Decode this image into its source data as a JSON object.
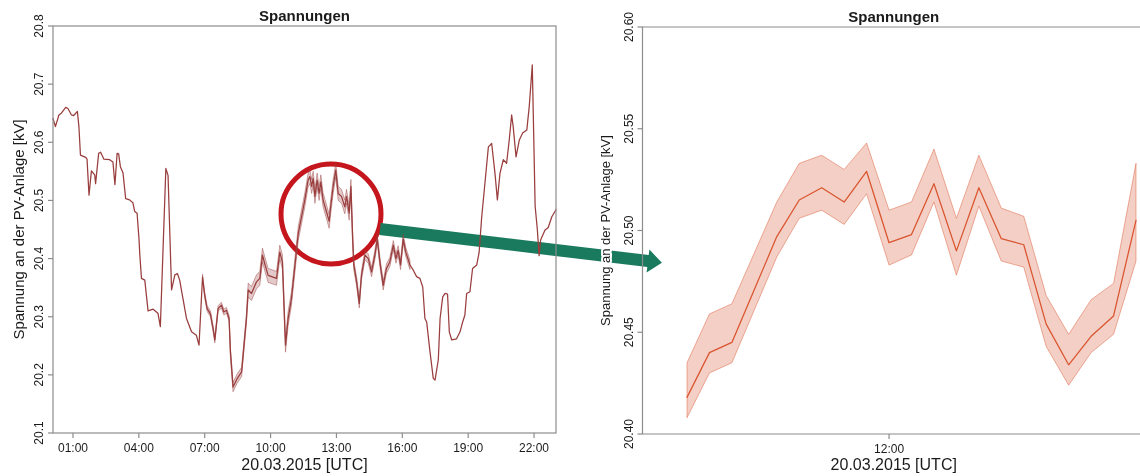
{
  "chart_data": [
    {
      "type": "line",
      "title": "Spannungen",
      "xlabel": "20.03.2015 [UTC]",
      "ylabel": "Spannung an der PV-Anlage [kV]",
      "xlim": [
        0.09,
        23
      ],
      "xticks": [
        {
          "value": 1,
          "label": "01:00"
        },
        {
          "value": 4,
          "label": "04:00"
        },
        {
          "value": 7,
          "label": "07:00"
        },
        {
          "value": 10,
          "label": "10:00"
        },
        {
          "value": 13,
          "label": "13:00"
        },
        {
          "value": 16,
          "label": "16:00"
        },
        {
          "value": 19,
          "label": "19:00"
        },
        {
          "value": 22,
          "label": "22:00"
        }
      ],
      "ylim": [
        20.1,
        20.8
      ],
      "yticks": [
        20.1,
        20.2,
        20.3,
        20.4,
        20.5,
        20.6,
        20.7,
        20.8
      ],
      "x": [
        0.09,
        0.2,
        0.36,
        0.47,
        0.67,
        0.77,
        0.93,
        1.03,
        1.2,
        1.27,
        1.34,
        1.58,
        1.64,
        1.73,
        1.84,
        1.99,
        2.03,
        2.17,
        2.26,
        2.41,
        2.67,
        2.82,
        2.91,
        3.01,
        3.08,
        3.16,
        3.28,
        3.4,
        3.58,
        3.73,
        3.81,
        3.92,
        4.01,
        4.04,
        4.12,
        4.27,
        4.42,
        4.65,
        4.87,
        4.98,
        5.23,
        5.33,
        5.49,
        5.64,
        5.76,
        5.86,
        6.01,
        6.17,
        6.4,
        6.62,
        6.74,
        6.9,
        7.0,
        7.11,
        7.26,
        7.38,
        7.46,
        7.61,
        7.76,
        7.87,
        7.99,
        8.11,
        8.17,
        8.29,
        8.47,
        8.68,
        8.9,
        8.98,
        9.13,
        9.36,
        9.51,
        9.63,
        9.75,
        9.89,
        10.27,
        10.42,
        10.54,
        10.65,
        10.68,
        10.8,
        10.95,
        11.26,
        11.56,
        11.71,
        11.79,
        11.87,
        11.94,
        12.02,
        12.12,
        12.21,
        12.29,
        12.39,
        12.52,
        12.67,
        12.73,
        12.85,
        12.97,
        13.08,
        13.23,
        13.38,
        13.46,
        13.58,
        13.66,
        13.73,
        13.79,
        13.92,
        14.04,
        14.14,
        14.3,
        14.45,
        14.6,
        14.75,
        14.86,
        14.98,
        15.13,
        15.28,
        15.43,
        15.59,
        15.71,
        15.81,
        15.92,
        16.04,
        16.16,
        16.35,
        16.5,
        16.65,
        16.8,
        16.93,
        17.03,
        17.11,
        17.26,
        17.41,
        17.49,
        17.64,
        17.72,
        17.84,
        17.95,
        18.06,
        18.14,
        18.25,
        18.47,
        18.63,
        18.75,
        18.85,
        18.93,
        19.08,
        19.2,
        19.39,
        19.5,
        19.61,
        19.92,
        20.07,
        20.22,
        20.33,
        20.45,
        20.6,
        20.75,
        20.87,
        20.98,
        21.05,
        21.18,
        21.33,
        21.48,
        21.67,
        21.78,
        21.92,
        22.05,
        22.15,
        22.23,
        22.3,
        22.5,
        22.64,
        22.81,
        23.0
      ],
      "series": [
        {
          "color": "#993d3d",
          "values": [
            20.641,
            20.627,
            20.647,
            20.65,
            20.66,
            20.658,
            20.647,
            20.646,
            20.653,
            20.627,
            20.578,
            20.574,
            20.571,
            20.509,
            20.551,
            20.544,
            20.529,
            20.581,
            20.583,
            20.571,
            20.57,
            20.566,
            20.527,
            20.581,
            20.58,
            20.558,
            20.547,
            20.503,
            20.501,
            20.496,
            20.481,
            20.478,
            20.432,
            20.409,
            20.366,
            20.363,
            20.31,
            20.313,
            20.306,
            20.283,
            20.555,
            20.543,
            20.346,
            20.372,
            20.374,
            20.363,
            20.331,
            20.297,
            20.274,
            20.268,
            20.251,
            20.368,
            20.337,
            20.314,
            20.305,
            20.28,
            20.26,
            20.314,
            20.32,
            20.308,
            20.311,
            20.297,
            20.24,
            20.179,
            20.193,
            20.205,
            20.297,
            20.346,
            20.34,
            20.36,
            20.366,
            20.406,
            20.389,
            20.371,
            20.366,
            20.411,
            20.394,
            20.28,
            20.251,
            20.297,
            20.331,
            20.443,
            20.501,
            20.535,
            20.541,
            20.524,
            20.538,
            20.507,
            20.535,
            20.512,
            20.532,
            20.501,
            20.484,
            20.464,
            20.487,
            20.524,
            20.552,
            20.512,
            20.507,
            20.489,
            20.507,
            20.478,
            20.524,
            20.443,
            20.389,
            20.36,
            20.323,
            20.371,
            20.406,
            20.4,
            20.377,
            20.406,
            20.434,
            20.394,
            20.354,
            20.383,
            20.394,
            20.423,
            20.4,
            20.414,
            20.389,
            20.434,
            20.411,
            20.389,
            20.38,
            20.369,
            20.366,
            20.351,
            20.297,
            20.291,
            20.24,
            20.194,
            20.191,
            20.226,
            20.297,
            20.334,
            20.34,
            20.339,
            20.274,
            20.26,
            20.262,
            20.274,
            20.291,
            20.303,
            20.34,
            20.343,
            20.383,
            20.389,
            20.411,
            20.469,
            20.592,
            20.598,
            20.547,
            20.501,
            20.547,
            20.57,
            20.564,
            20.604,
            20.647,
            20.627,
            20.575,
            20.604,
            20.616,
            20.621,
            20.661,
            20.733,
            20.49,
            20.45,
            20.405,
            20.432,
            20.449,
            20.453,
            20.472,
            20.484
          ],
          "lower": [
            null,
            null,
            null,
            null,
            null,
            null,
            null,
            null,
            null,
            null,
            null,
            null,
            null,
            null,
            null,
            null,
            null,
            null,
            null,
            null,
            null,
            null,
            null,
            null,
            null,
            null,
            null,
            null,
            null,
            null,
            null,
            null,
            null,
            null,
            null,
            null,
            null,
            null,
            null,
            null,
            null,
            null,
            null,
            null,
            null,
            null,
            null,
            null,
            null,
            null,
            null,
            20.363,
            20.332,
            20.309,
            20.3,
            20.275,
            20.255,
            20.309,
            20.315,
            20.303,
            20.306,
            20.292,
            20.232,
            20.171,
            20.185,
            20.197,
            20.289,
            20.334,
            20.328,
            20.348,
            20.354,
            20.394,
            20.377,
            20.359,
            20.354,
            20.399,
            20.382,
            20.268,
            20.239,
            20.285,
            20.319,
            20.431,
            20.489,
            20.523,
            20.529,
            20.512,
            20.526,
            20.495,
            20.523,
            20.5,
            20.52,
            20.489,
            20.472,
            20.452,
            20.475,
            20.512,
            20.54,
            20.5,
            20.495,
            20.477,
            20.495,
            20.466,
            20.512,
            20.431,
            20.381,
            20.352,
            20.315,
            20.363,
            20.398,
            20.392,
            20.369,
            20.398,
            20.426,
            20.386,
            20.346,
            20.375,
            20.386,
            20.415,
            20.392,
            20.406,
            20.381,
            20.426,
            20.403,
            20.381,
            null,
            null,
            null,
            null,
            null,
            null,
            null,
            null,
            null,
            null,
            null,
            null,
            null,
            null,
            null,
            null,
            null,
            null,
            null,
            null,
            null,
            null,
            null,
            null,
            null,
            null,
            null,
            null,
            null,
            null,
            null,
            null,
            null,
            null,
            null,
            null,
            null,
            null,
            null,
            null,
            null,
            null,
            null,
            null,
            null,
            null,
            null,
            null,
            null,
            null
          ],
          "upper": [
            null,
            null,
            null,
            null,
            null,
            null,
            null,
            null,
            null,
            null,
            null,
            null,
            null,
            null,
            null,
            null,
            null,
            null,
            null,
            null,
            null,
            null,
            null,
            null,
            null,
            null,
            null,
            null,
            null,
            null,
            null,
            null,
            null,
            null,
            null,
            null,
            null,
            null,
            null,
            null,
            null,
            null,
            null,
            null,
            null,
            null,
            null,
            null,
            null,
            null,
            null,
            20.373,
            20.342,
            20.319,
            20.31,
            20.285,
            20.265,
            20.319,
            20.325,
            20.313,
            20.316,
            20.302,
            20.248,
            20.187,
            20.201,
            20.213,
            20.305,
            20.358,
            20.352,
            20.372,
            20.378,
            20.418,
            20.401,
            20.383,
            20.378,
            20.423,
            20.406,
            20.292,
            20.263,
            20.309,
            20.343,
            20.455,
            20.513,
            20.547,
            20.553,
            20.536,
            20.55,
            20.519,
            20.547,
            20.524,
            20.544,
            20.513,
            20.496,
            20.476,
            20.499,
            20.536,
            20.564,
            20.524,
            20.519,
            20.501,
            20.519,
            20.49,
            20.536,
            20.455,
            20.397,
            20.368,
            20.331,
            20.379,
            20.414,
            20.408,
            20.385,
            20.414,
            20.442,
            20.402,
            20.362,
            20.391,
            20.402,
            20.431,
            20.408,
            20.422,
            20.397,
            20.442,
            20.419,
            20.397,
            null,
            null,
            null,
            null,
            null,
            null,
            null,
            null,
            null,
            null,
            null,
            null,
            null,
            null,
            null,
            null,
            null,
            null,
            null,
            null,
            null,
            null,
            null,
            null,
            null,
            null,
            null,
            null,
            null,
            null,
            null,
            null,
            null,
            null,
            null,
            null,
            null,
            null,
            null,
            null,
            null,
            null,
            null,
            null,
            null,
            null,
            null,
            null,
            null,
            null
          ]
        }
      ]
    },
    {
      "type": "line",
      "title": "Spannungen",
      "xlabel": "20.03.2015 [UTC]",
      "ylabel": "Spannung an der PV-Anlage [kV]",
      "categories": [
        null,
        null,
        null,
        null,
        null,
        null,
        null,
        null,
        null,
        "12:00",
        null,
        null,
        null,
        null,
        null,
        null,
        null,
        null,
        null,
        null,
        null
      ],
      "ylim": [
        20.4,
        20.6
      ],
      "yticks": [
        {
          "value": 20.4,
          "label": "20.40"
        },
        20.45,
        {
          "value": 20.5,
          "label": "20.50"
        },
        20.55,
        {
          "value": 20.6,
          "label": "20.60"
        }
      ],
      "series": [
        {
          "color": "#d9542e",
          "values": [
            20.418,
            20.44,
            20.445,
            20.471,
            20.497,
            20.515,
            20.521,
            20.514,
            20.529,
            20.494,
            20.498,
            20.523,
            20.49,
            20.521,
            20.496,
            20.493,
            20.454,
            20.434,
            20.448,
            20.458,
            20.505
          ],
          "lower": [
            20.408,
            20.43,
            20.435,
            20.461,
            20.487,
            20.506,
            20.51,
            20.503,
            20.518,
            20.483,
            20.488,
            20.514,
            20.478,
            20.512,
            20.485,
            20.482,
            20.443,
            20.424,
            20.44,
            20.449,
            20.485
          ],
          "upper": [
            20.435,
            20.459,
            20.464,
            20.489,
            20.514,
            20.533,
            20.537,
            20.53,
            20.543,
            20.51,
            20.514,
            20.54,
            20.506,
            20.537,
            20.511,
            20.507,
            20.468,
            20.449,
            20.466,
            20.474,
            20.533
          ]
        }
      ]
    }
  ]
}
